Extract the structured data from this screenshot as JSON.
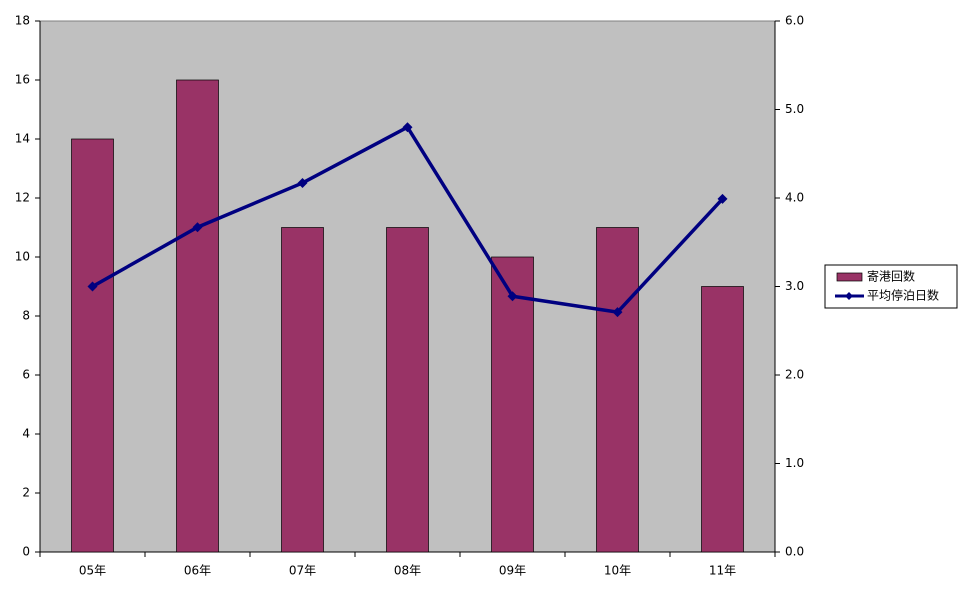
{
  "chart_data": {
    "type": "bar",
    "categories": [
      "05年",
      "06年",
      "07年",
      "08年",
      "09年",
      "10年",
      "11年"
    ],
    "series": [
      {
        "name": "寄港回数",
        "type": "bar",
        "color": "#993366",
        "values": [
          14,
          16,
          11,
          11,
          10,
          11,
          9
        ]
      },
      {
        "name": "平均停泊日数",
        "type": "line",
        "axis": "y2",
        "color": "#000080",
        "values": [
          3.0,
          3.67,
          4.17,
          4.8,
          2.89,
          2.71,
          3.99
        ]
      }
    ],
    "ylim": [
      0,
      18
    ],
    "yticks": [
      0,
      2,
      4,
      6,
      8,
      10,
      12,
      14,
      16,
      18
    ],
    "y2lim": [
      0,
      6
    ],
    "y2ticks": [
      {
        "value": 0,
        "label": "0.0"
      },
      {
        "value": 1,
        "label": "1.0"
      },
      {
        "value": 2,
        "label": "2.0"
      },
      {
        "value": 3,
        "label": "3.0"
      },
      {
        "value": 4,
        "label": "4.0"
      },
      {
        "value": 5,
        "label": "5.0"
      },
      {
        "value": 6,
        "label": "6.0"
      }
    ],
    "plot_background": "#c0c0c0",
    "legend": "right"
  }
}
